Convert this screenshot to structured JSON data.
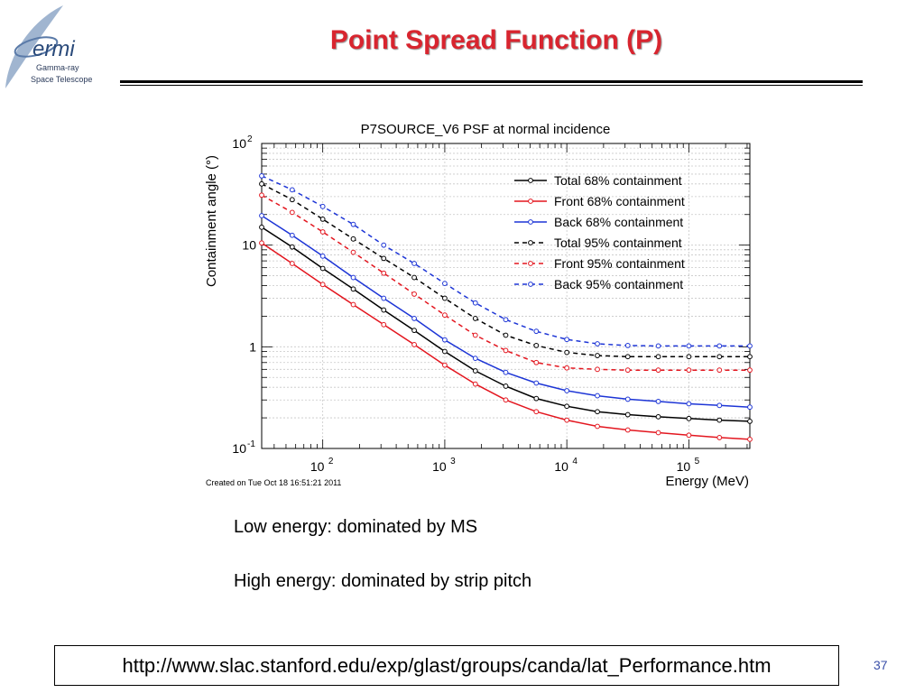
{
  "slide": {
    "title": "Point Spread Function (P)",
    "notes": [
      "Low energy: dominated by MS",
      "High energy: dominated by strip pitch"
    ],
    "url": "http://www.slac.stanford.edu/exp/glast/groups/canda/lat_Performance.htm",
    "page_number": "37"
  },
  "logo": {
    "name": "ermi",
    "line1": "Gamma-ray",
    "line2": "Space Telescope"
  },
  "colors": {
    "title": "#d8252f",
    "total": "#000000",
    "front": "#e3161f",
    "back": "#1d35d6",
    "page_number": "#3a4fa8"
  },
  "chart_data": {
    "type": "line",
    "title": "P7SOURCE_V6 PSF at normal incidence",
    "xlabel": "Energy (MeV)",
    "ylabel": "Containment angle (°)",
    "x_scale": "log",
    "y_scale": "log",
    "xlim": [
      31.6,
      316000
    ],
    "ylim": [
      0.1,
      100
    ],
    "x_ticks": [
      {
        "base": "10",
        "exp": "2",
        "value": 100
      },
      {
        "base": "10",
        "exp": "3",
        "value": 1000
      },
      {
        "base": "10",
        "exp": "4",
        "value": 10000
      },
      {
        "base": "10",
        "exp": "5",
        "value": 100000
      }
    ],
    "y_ticks": [
      {
        "base": "10",
        "exp": "-1",
        "value": 0.1
      },
      {
        "base": "1",
        "exp": "",
        "value": 1
      },
      {
        "base": "10",
        "exp": "",
        "value": 10
      },
      {
        "base": "10",
        "exp": "2",
        "value": 100
      }
    ],
    "grid": true,
    "legend_position": "top-right",
    "footnote": "Created on Tue Oct 18 16:51:21 2011",
    "x": [
      31.6,
      56.2,
      100,
      178,
      316,
      562,
      1000,
      1780,
      3160,
      5620,
      10000,
      17800,
      31600,
      56200,
      100000,
      178000,
      316000
    ],
    "series": [
      {
        "name": "Total 68% containment",
        "color": "#000000",
        "dashed": false,
        "values": [
          15,
          9.6,
          5.9,
          3.7,
          2.3,
          1.45,
          0.9,
          0.58,
          0.41,
          0.31,
          0.26,
          0.23,
          0.215,
          0.205,
          0.197,
          0.19,
          0.185
        ]
      },
      {
        "name": "Front 68% containment",
        "color": "#e3161f",
        "dashed": false,
        "values": [
          10.5,
          6.6,
          4.1,
          2.6,
          1.65,
          1.05,
          0.66,
          0.43,
          0.3,
          0.23,
          0.19,
          0.165,
          0.152,
          0.143,
          0.135,
          0.128,
          0.123
        ]
      },
      {
        "name": "Back 68% containment",
        "color": "#1d35d6",
        "dashed": false,
        "values": [
          19.5,
          12.5,
          7.8,
          4.8,
          3.0,
          1.9,
          1.17,
          0.77,
          0.56,
          0.44,
          0.37,
          0.33,
          0.305,
          0.29,
          0.275,
          0.265,
          0.255
        ]
      },
      {
        "name": "Total 95% containment",
        "color": "#000000",
        "dashed": true,
        "values": [
          40,
          28,
          18,
          11.5,
          7.4,
          4.8,
          3.0,
          1.9,
          1.3,
          1.03,
          0.88,
          0.82,
          0.8,
          0.8,
          0.8,
          0.8,
          0.8
        ]
      },
      {
        "name": "Front 95% containment",
        "color": "#e3161f",
        "dashed": true,
        "values": [
          31,
          21,
          13.5,
          8.5,
          5.3,
          3.3,
          2.05,
          1.3,
          0.92,
          0.7,
          0.62,
          0.6,
          0.59,
          0.59,
          0.59,
          0.59,
          0.59
        ]
      },
      {
        "name": "Back 95% containment",
        "color": "#1d35d6",
        "dashed": true,
        "values": [
          48,
          35,
          24,
          16,
          10,
          6.6,
          4.2,
          2.7,
          1.85,
          1.42,
          1.18,
          1.07,
          1.03,
          1.02,
          1.02,
          1.02,
          1.02
        ]
      }
    ]
  }
}
